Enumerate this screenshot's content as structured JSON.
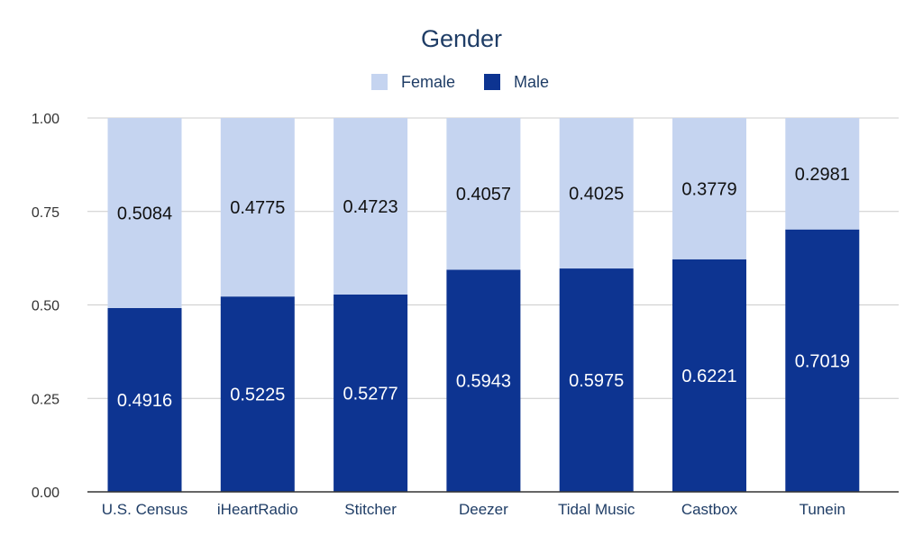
{
  "chart_data": {
    "type": "bar",
    "stacked": true,
    "title": "Gender",
    "xlabel": "",
    "ylabel": "",
    "ylim": [
      0,
      1
    ],
    "yticks": [
      "0.00",
      "0.25",
      "0.50",
      "0.75",
      "1.00"
    ],
    "grid": true,
    "legend_position": "top-center",
    "categories": [
      "U.S. Census",
      "iHeartRadio",
      "Stitcher",
      "Deezer",
      "Tidal Music",
      "Castbox",
      "Tunein"
    ],
    "series": [
      {
        "name": "Male",
        "color": "#0d3491",
        "values": [
          0.4916,
          0.5225,
          0.5277,
          0.5943,
          0.5975,
          0.6221,
          0.7019
        ],
        "labels": [
          "0.4916",
          "0.5225",
          "0.5277",
          "0.5943",
          "0.5975",
          "0.6221",
          "0.7019"
        ]
      },
      {
        "name": "Female",
        "color": "#c5d4f0",
        "values": [
          0.5084,
          0.4775,
          0.4723,
          0.4057,
          0.4025,
          0.3779,
          0.2981
        ],
        "labels": [
          "0.5084",
          "0.4775",
          "0.4723",
          "0.4057",
          "0.4025",
          "0.3779",
          "0.2981"
        ]
      }
    ],
    "legend": [
      "Female",
      "Male"
    ]
  }
}
